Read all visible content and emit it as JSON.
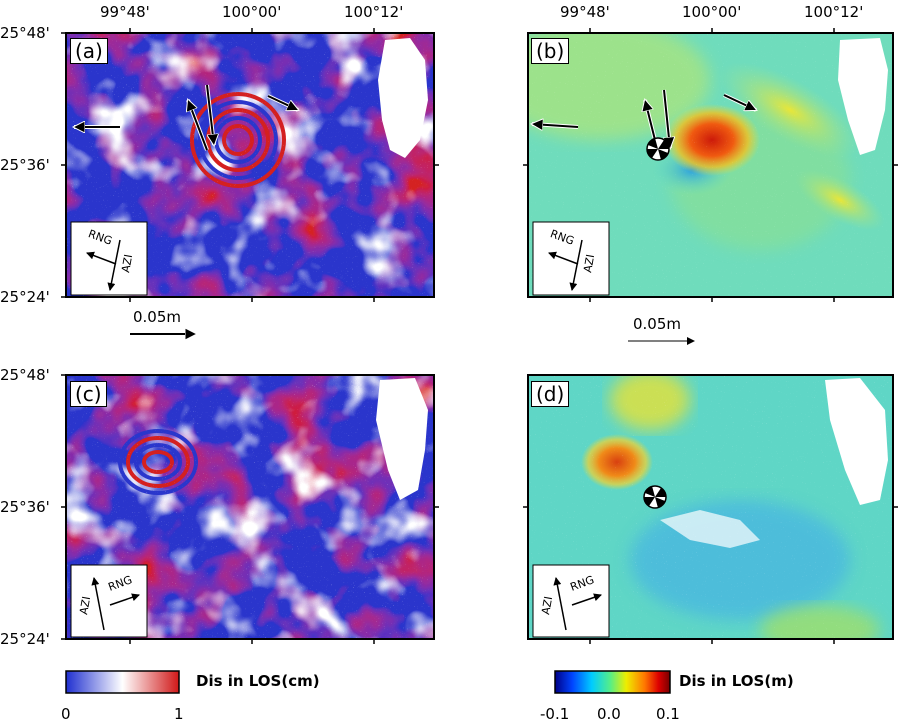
{
  "axes": {
    "longitude_ticks": [
      "99°48'",
      "100°00'",
      "100°12'"
    ],
    "latitude_ticks": [
      "25°48'",
      "25°36'",
      "25°24'"
    ]
  },
  "panels": [
    {
      "id": "a",
      "label": "(a)",
      "type": "wrapped-interferogram",
      "look_dir": {
        "rng": "RNG",
        "azi": "AZI"
      }
    },
    {
      "id": "b",
      "label": "(b)",
      "type": "unwrapped-deformation",
      "look_dir": {
        "rng": "RNG",
        "azi": "AZI"
      }
    },
    {
      "id": "c",
      "label": "(c)",
      "type": "wrapped-interferogram",
      "look_dir": {
        "rng": "RNG",
        "azi": "AZI"
      }
    },
    {
      "id": "d",
      "label": "(d)",
      "type": "unwrapped-deformation",
      "look_dir": {
        "rng": "RNG",
        "azi": "AZI"
      }
    }
  ],
  "scale_bars": [
    {
      "label": "0.05m",
      "panel": "a"
    },
    {
      "label": "0.05m",
      "panel": "b"
    }
  ],
  "colorbars": [
    {
      "title": "Dis in LOS(cm)",
      "ticks": [
        "0",
        "1"
      ],
      "colors": [
        "#1f2fd0",
        "#ffffff",
        "#d01818"
      ]
    },
    {
      "title": "Dis in LOS(m)",
      "ticks": [
        "-0.1",
        "0.0",
        "0.1"
      ],
      "colors": [
        "#000088",
        "#0044ff",
        "#00ccff",
        "#55ee88",
        "#eeee00",
        "#ff7700",
        "#dd0000",
        "#770000"
      ]
    }
  ],
  "colors": {
    "wrapped_pos": "#d02020",
    "wrapped_neg": "#2030c8",
    "uplift": "#d52a10",
    "background": "#5fd8c8"
  }
}
